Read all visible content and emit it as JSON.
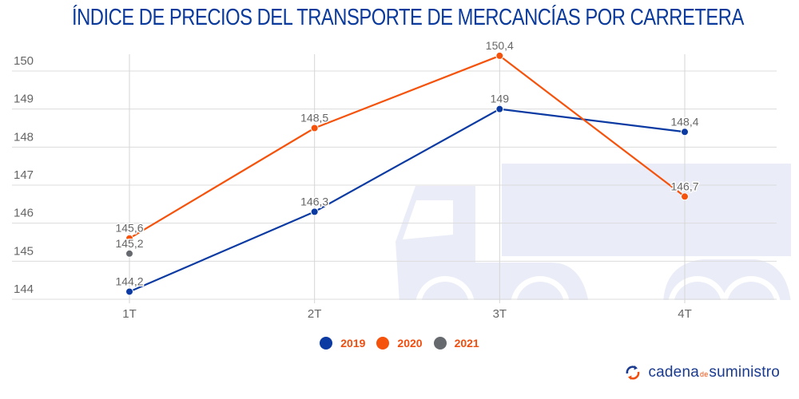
{
  "chart_data": {
    "type": "line",
    "title": "ÍNDICE DE PRECIOS DEL TRANSPORTE DE MERCANCÍAS POR CARRETERA",
    "xlabel": "",
    "ylabel": "",
    "categories": [
      "1T",
      "2T",
      "3T",
      "4T"
    ],
    "ylim": [
      144,
      150
    ],
    "yticks": [
      150,
      149,
      148,
      147,
      146,
      145,
      144
    ],
    "grid": true,
    "legend_position": "bottom",
    "series": [
      {
        "name": "2019",
        "color": "#0b3aa3",
        "values": [
          144.2,
          146.3,
          149,
          148.4
        ],
        "labels": [
          "144,2",
          "146,3",
          "149",
          "148,4"
        ]
      },
      {
        "name": "2020",
        "color": "#f5520c",
        "values": [
          145.6,
          148.5,
          150.4,
          146.7
        ],
        "labels": [
          "145,6",
          "148,5",
          "150,4",
          "146,7"
        ]
      },
      {
        "name": "2021",
        "color": "#666a6e",
        "values": [
          145.2,
          null,
          null,
          null
        ],
        "labels": [
          "145,2",
          null,
          null,
          null
        ]
      }
    ]
  },
  "legend": [
    {
      "label": "2019",
      "color": "#0b3aa3"
    },
    {
      "label": "2020",
      "color": "#f5520c"
    },
    {
      "label": "2021",
      "color": "#666a6e"
    }
  ],
  "background_icon": "truck-icon",
  "logo": {
    "part1": "cadena",
    "part2": "de",
    "part3": "suministro",
    "icon": "refresh-arrows-icon"
  }
}
